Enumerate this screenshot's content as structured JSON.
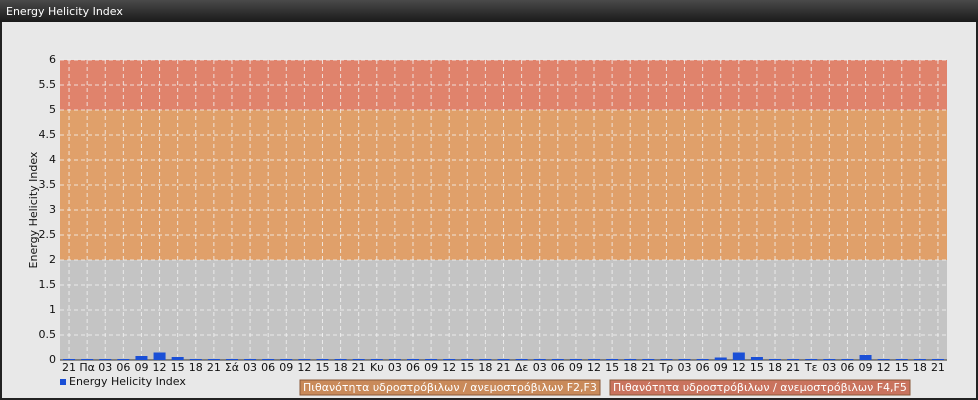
{
  "chart_data": {
    "type": "bar",
    "title": "Energy Helicity Index",
    "y_label": "Energy Helicity Index",
    "categories": [
      "21",
      "Πα",
      "03",
      "06",
      "09",
      "12",
      "15",
      "18",
      "21",
      "Σά",
      "03",
      "06",
      "09",
      "12",
      "15",
      "18",
      "21",
      "Κυ",
      "03",
      "06",
      "09",
      "12",
      "15",
      "18",
      "21",
      "Δε",
      "03",
      "06",
      "09",
      "12",
      "15",
      "18",
      "21",
      "Τρ",
      "03",
      "06",
      "09",
      "12",
      "15",
      "18",
      "21",
      "Τε",
      "03",
      "06",
      "09",
      "12",
      "15",
      "18",
      "21"
    ],
    "series": [
      {
        "name": "Energy Helicity Index",
        "color": "#1a4fd6",
        "values": [
          0.02,
          0.02,
          0.02,
          0.02,
          0.08,
          0.15,
          0.06,
          0.02,
          0.02,
          0.02,
          0.02,
          0.02,
          0.02,
          0.02,
          0.02,
          0.02,
          0.02,
          0.02,
          0.02,
          0.02,
          0.02,
          0.02,
          0.02,
          0.02,
          0.02,
          0.02,
          0.02,
          0.02,
          0.02,
          0.02,
          0.02,
          0.02,
          0.02,
          0.02,
          0.02,
          0.02,
          0.05,
          0.15,
          0.06,
          0.02,
          0.02,
          0.02,
          0.02,
          0.02,
          0.1,
          0.02,
          0.02,
          0.02,
          0.02
        ]
      }
    ],
    "bands": [
      {
        "from": 0,
        "to": 2,
        "color": "#c4c4c4"
      },
      {
        "from": 2,
        "to": 5,
        "color": "#e0a06a",
        "label": "Πιθανότητα υδροστρόβιλων / ανεμοστρόβιλων F2,F3",
        "legend_color": "#c98a5a"
      },
      {
        "from": 5,
        "to": 6,
        "color": "#e0836c",
        "label": "Πιθανότητα υδροστρόβιλων / ανεμοστρόβιλων F4,F5",
        "legend_color": "#c9735e"
      }
    ],
    "ylim": [
      0,
      6
    ],
    "yticks": [
      0,
      0.5,
      1,
      1.5,
      2,
      2.5,
      3,
      3.5,
      4,
      4.5,
      5,
      5.5,
      6
    ],
    "grid": true
  }
}
